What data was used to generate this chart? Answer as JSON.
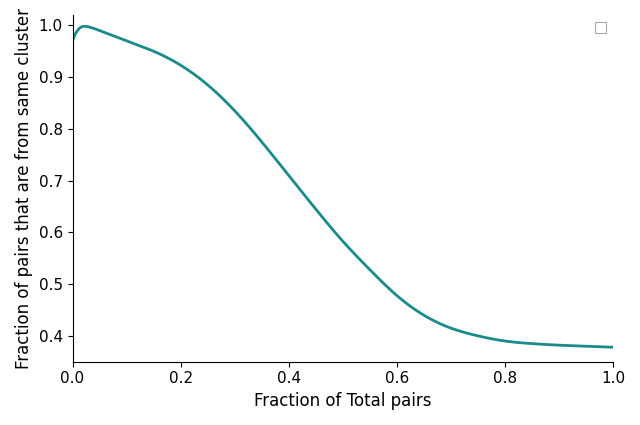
{
  "xlabel": "Fraction of Total pairs",
  "ylabel": "Fraction of pairs that are from same cluster",
  "line_color": "#1a8a8a",
  "line_width": 2.0,
  "xlim": [
    0.0,
    1.0
  ],
  "ylim": [
    0.35,
    1.02
  ],
  "yticks": [
    0.4,
    0.5,
    0.6,
    0.7,
    0.8,
    0.9,
    1.0
  ],
  "xticks": [
    0.0,
    0.2,
    0.4,
    0.6,
    0.8,
    1.0
  ],
  "background_color": "#ffffff",
  "xlabel_fontsize": 12,
  "ylabel_fontsize": 12,
  "tick_fontsize": 11,
  "legend_box": true,
  "curve_points_x": [
    0.0,
    0.005,
    0.01,
    0.015,
    0.02,
    0.03,
    0.05,
    0.08,
    0.1,
    0.15,
    0.2,
    0.25,
    0.3,
    0.35,
    0.4,
    0.45,
    0.5,
    0.55,
    0.6,
    0.65,
    0.7,
    0.75,
    0.8,
    0.85,
    0.9,
    0.95,
    1.0
  ],
  "curve_points_y": [
    0.97,
    0.983,
    0.991,
    0.996,
    0.998,
    0.997,
    0.99,
    0.978,
    0.97,
    0.95,
    0.923,
    0.885,
    0.835,
    0.775,
    0.71,
    0.645,
    0.583,
    0.528,
    0.478,
    0.44,
    0.415,
    0.4,
    0.39,
    0.385,
    0.382,
    0.38,
    0.378
  ]
}
